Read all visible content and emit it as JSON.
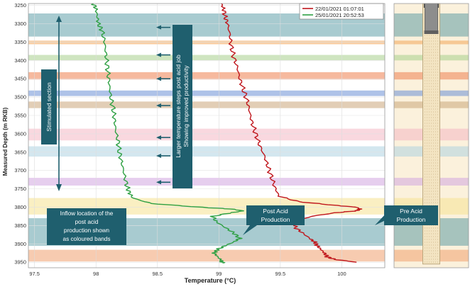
{
  "chart_data": {
    "type": "line",
    "xlabel": "Temperature (°C)",
    "ylabel": "Measured Depth (m RKB)",
    "xlim": [
      97.45,
      100.35
    ],
    "ylim": [
      3245,
      3965
    ],
    "x_ticks": [
      "97.5",
      "98",
      "98.5",
      "99",
      "99.5",
      "100"
    ],
    "x_tick_values": [
      97.5,
      98.0,
      98.5,
      99.0,
      99.5,
      100.0
    ],
    "y_ticks": [
      "3250",
      "3300",
      "3350",
      "3400",
      "3450",
      "3500",
      "3550",
      "3600",
      "3650",
      "3700",
      "3750",
      "3800",
      "3850",
      "3900",
      "3950"
    ],
    "y_tick_values": [
      3250,
      3300,
      3350,
      3400,
      3450,
      3500,
      3550,
      3600,
      3650,
      3700,
      3750,
      3800,
      3850,
      3900,
      3950
    ],
    "grid": true,
    "legend_position": "top-right",
    "series": [
      {
        "name": "22/01/2021 01:07:01",
        "color": "#c0161c",
        "depth": [
          3245,
          3260,
          3280,
          3300,
          3330,
          3360,
          3390,
          3420,
          3450,
          3480,
          3510,
          3540,
          3570,
          3600,
          3630,
          3660,
          3690,
          3720,
          3750,
          3770,
          3785,
          3795,
          3800,
          3805,
          3810,
          3815,
          3825,
          3840,
          3855,
          3870,
          3885,
          3895,
          3905,
          3915,
          3925,
          3935,
          3942,
          3950
        ],
        "temperature": [
          99.02,
          99.04,
          99.05,
          99.07,
          99.09,
          99.1,
          99.12,
          99.15,
          99.17,
          99.2,
          99.23,
          99.25,
          99.27,
          99.3,
          99.33,
          99.37,
          99.4,
          99.43,
          99.46,
          99.49,
          99.65,
          99.95,
          100.12,
          100.15,
          100.12,
          99.95,
          99.75,
          99.62,
          99.62,
          99.68,
          99.74,
          99.78,
          99.8,
          99.83,
          99.86,
          99.88,
          99.94,
          100.12
        ]
      },
      {
        "name": "25/01/2021 20:52:53",
        "color": "#2ea043",
        "depth": [
          3245,
          3260,
          3280,
          3300,
          3320,
          3350,
          3380,
          3410,
          3440,
          3470,
          3500,
          3530,
          3560,
          3590,
          3620,
          3650,
          3680,
          3710,
          3740,
          3760,
          3775,
          3790,
          3800,
          3805,
          3810,
          3815,
          3825,
          3840,
          3855,
          3870,
          3885,
          3895,
          3905,
          3915,
          3925,
          3935,
          3945,
          3952
        ],
        "temperature": [
          97.98,
          98.0,
          98.01,
          98.02,
          98.05,
          98.07,
          98.08,
          98.09,
          98.1,
          98.11,
          98.12,
          98.14,
          98.15,
          98.16,
          98.18,
          98.19,
          98.21,
          98.23,
          98.25,
          98.27,
          98.3,
          98.45,
          98.85,
          99.1,
          99.2,
          99.1,
          98.95,
          98.98,
          99.05,
          99.12,
          99.17,
          99.12,
          99.05,
          98.99,
          98.96,
          98.99,
          99.02,
          99.03
        ]
      }
    ],
    "zones": [
      {
        "top": 3272,
        "bottom": 3335,
        "color": "#3f8c97",
        "opacity": 0.45
      },
      {
        "top": 3346,
        "bottom": 3356,
        "color": "#f2a65a",
        "opacity": 0.55
      },
      {
        "top": 3385,
        "bottom": 3400,
        "color": "#a8d08d",
        "opacity": 0.55
      },
      {
        "top": 3432,
        "bottom": 3452,
        "color": "#f08a5d",
        "opacity": 0.6
      },
      {
        "top": 3482,
        "bottom": 3497,
        "color": "#6b8fd6",
        "opacity": 0.55
      },
      {
        "top": 3512,
        "bottom": 3530,
        "color": "#caa67a",
        "opacity": 0.55
      },
      {
        "top": 3586,
        "bottom": 3618,
        "color": "#f3b2c0",
        "opacity": 0.5
      },
      {
        "top": 3634,
        "bottom": 3662,
        "color": "#a7cfe0",
        "opacity": 0.5
      },
      {
        "top": 3720,
        "bottom": 3741,
        "color": "#d2a6e0",
        "opacity": 0.55
      },
      {
        "top": 3775,
        "bottom": 3820,
        "color": "#f6e49a",
        "opacity": 0.6
      },
      {
        "top": 3830,
        "bottom": 3905,
        "color": "#3f8c97",
        "opacity": 0.45
      },
      {
        "top": 3916,
        "bottom": 3948,
        "color": "#f0a070",
        "opacity": 0.55
      }
    ],
    "annotations": {
      "stimulated": "Stimulated section",
      "larger_steps_line1": "Larger temperature steps post acid job",
      "larger_steps_line2": "Showing improved productivity",
      "inflow_line1": "Inflow location of the",
      "inflow_line2": "post acid",
      "inflow_line3": "production shown",
      "inflow_line4": "as coloured bands",
      "post_acid_line1": "Post Acid",
      "post_acid_line2": "Production",
      "pre_acid_line1": "Pre Acid",
      "pre_acid_line2": "Production"
    },
    "colors": {
      "annotation_box": "#1f5f6e",
      "arrow": "#1f5f6e",
      "well_background": "#fbf1dc"
    }
  }
}
